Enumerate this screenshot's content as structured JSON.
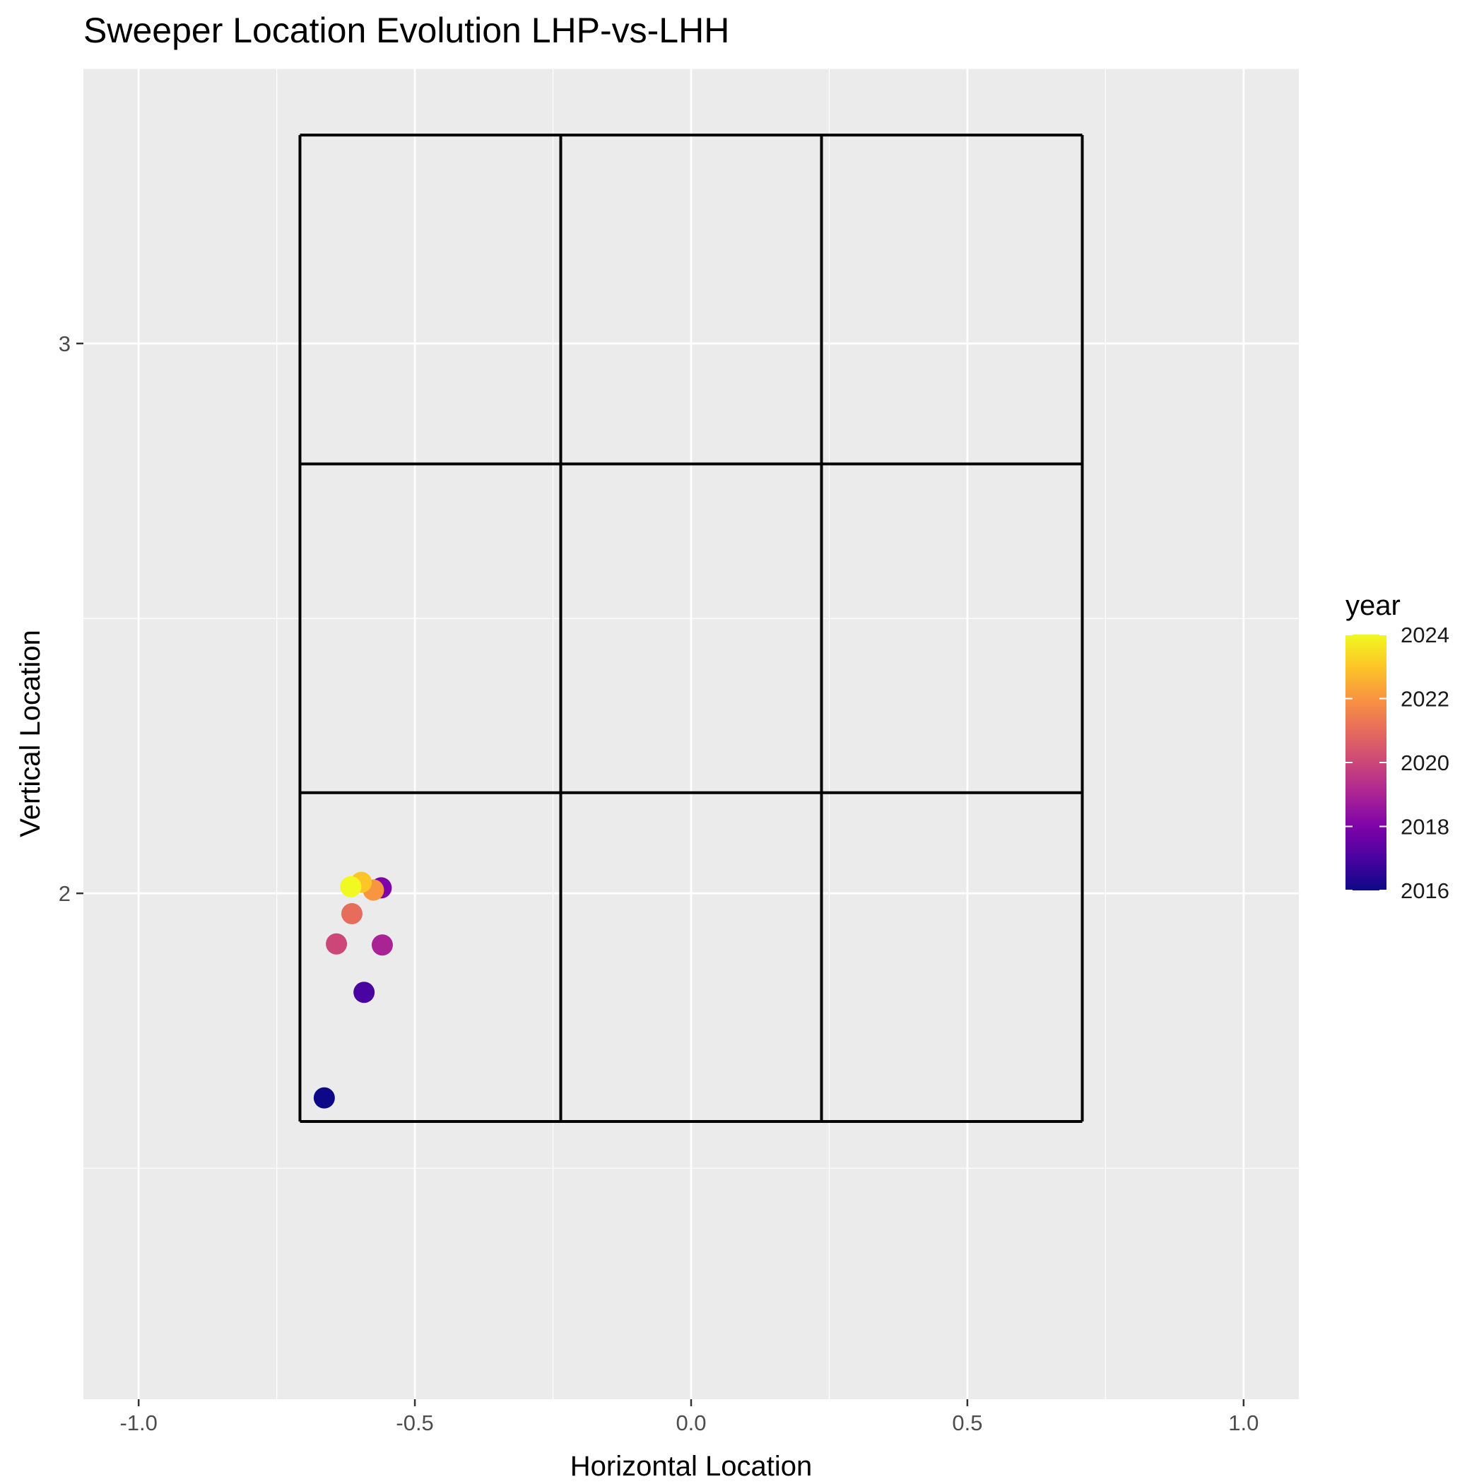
{
  "chart_data": {
    "type": "scatter",
    "title": "Sweeper Location Evolution LHP-vs-LHH",
    "xlabel": "Horizontal Location",
    "ylabel": "Vertical Location",
    "xlim": [
      -1.1,
      1.1
    ],
    "ylim": [
      1.08,
      3.5
    ],
    "x_ticks": [
      {
        "value": -1.0,
        "label": "-1.0"
      },
      {
        "value": -0.5,
        "label": "-0.5"
      },
      {
        "value": 0.0,
        "label": "0.0"
      },
      {
        "value": 0.5,
        "label": "0.5"
      },
      {
        "value": 1.0,
        "label": "1.0"
      }
    ],
    "y_ticks": [
      {
        "value": 2,
        "label": "2"
      },
      {
        "value": 3,
        "label": "3"
      }
    ],
    "x_minor_grid": [
      -0.75,
      -0.25,
      0.25,
      0.75
    ],
    "y_minor_grid": [
      1.5,
      2.5,
      3.5
    ],
    "grid": true,
    "panel_background": "#ebebeb",
    "strike_zone": {
      "x_bounds": [
        -0.708,
        -0.236,
        0.236,
        0.708
      ],
      "y_bounds": [
        1.585,
        2.183,
        2.781,
        3.379
      ],
      "color": "#000000"
    },
    "color_scale": {
      "name": "year",
      "palette": "plasma",
      "min": 2016,
      "max": 2024,
      "legend_position": "right",
      "breaks": [
        2024,
        2022,
        2020,
        2018,
        2016
      ]
    },
    "points": [
      {
        "year": 2016,
        "x": -0.664,
        "y": 1.628
      },
      {
        "year": 2017,
        "x": -0.592,
        "y": 1.82
      },
      {
        "year": 2018,
        "x": -0.561,
        "y": 2.01
      },
      {
        "year": 2019,
        "x": -0.559,
        "y": 1.906
      },
      {
        "year": 2020,
        "x": -0.642,
        "y": 1.908
      },
      {
        "year": 2021,
        "x": -0.614,
        "y": 1.963
      },
      {
        "year": 2022,
        "x": -0.575,
        "y": 2.006
      },
      {
        "year": 2023,
        "x": -0.597,
        "y": 2.02
      },
      {
        "year": 2024,
        "x": -0.616,
        "y": 2.012
      }
    ]
  }
}
